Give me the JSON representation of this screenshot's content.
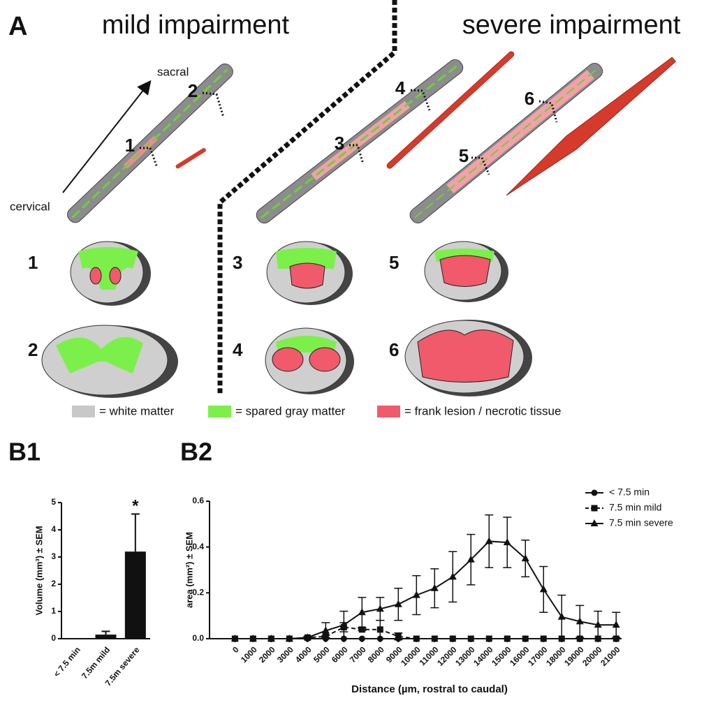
{
  "panel_a": {
    "label": "A",
    "mild_title": "mild impairment",
    "severe_title": "severe impairment",
    "arrow_start": "cervical",
    "arrow_end": "sacral",
    "cord_markers": [
      "1",
      "2",
      "3",
      "4",
      "5",
      "6"
    ],
    "section_labels": [
      "1",
      "2",
      "3",
      "4",
      "5",
      "6"
    ],
    "legend": [
      "= white matter",
      "= spared gray matter",
      "= frank lesion / necrotic tissue"
    ]
  },
  "chart_data": [
    {
      "type": "bar",
      "panel_label": "B1",
      "ylabel": "Volume (mm³) ± SEM",
      "categories": [
        "< 7.5 min",
        "7.5m mild",
        "7.5m severe"
      ],
      "values": [
        0,
        0.15,
        3.2
      ],
      "errors": [
        0,
        0.12,
        1.38
      ],
      "color": "#111111",
      "annotation": "*",
      "ylim": [
        0,
        5
      ],
      "yticks": [
        0,
        1,
        2,
        3,
        4,
        5
      ]
    },
    {
      "type": "line",
      "panel_label": "B2",
      "xlabel": "Distance (µm, rostral to caudal)",
      "ylabel": "area (mm²) ± SEM",
      "x": [
        0,
        1000,
        2000,
        3000,
        4000,
        5000,
        6000,
        7000,
        8000,
        9000,
        10000,
        11000,
        12000,
        13000,
        14000,
        15000,
        16000,
        17000,
        18000,
        19000,
        20000,
        21000
      ],
      "series": [
        {
          "name": "< 7.5 min",
          "color": "#111111",
          "marker": "circle",
          "line_style": "solid",
          "values": [
            0,
            0,
            0,
            0,
            0,
            0,
            0,
            0,
            0,
            0,
            0,
            0,
            0,
            0,
            0,
            0,
            0,
            0,
            0,
            0,
            0,
            0
          ],
          "errors": [
            0,
            0,
            0,
            0,
            0,
            0,
            0,
            0,
            0,
            0,
            0,
            0,
            0,
            0,
            0,
            0,
            0,
            0,
            0,
            0,
            0,
            0
          ]
        },
        {
          "name": "7.5 min mild",
          "color": "#111111",
          "marker": "square",
          "line_style": "dashed",
          "values": [
            0,
            0,
            0,
            0,
            0.005,
            0.01,
            0.05,
            0.04,
            0.04,
            0.01,
            0,
            0,
            0,
            0,
            0,
            0,
            0,
            0,
            0,
            0,
            0,
            0
          ],
          "errors": [
            0,
            0,
            0,
            0,
            0,
            0.005,
            0.02,
            0.005,
            0.04,
            0.015,
            0,
            0,
            0,
            0,
            0,
            0,
            0,
            0,
            0,
            0,
            0,
            0
          ]
        },
        {
          "name": "7.5 min severe",
          "color": "#111111",
          "marker": "triangle",
          "line_style": "solid",
          "values": [
            0,
            0,
            0,
            0,
            0.005,
            0.035,
            0.06,
            0.115,
            0.13,
            0.15,
            0.19,
            0.22,
            0.27,
            0.345,
            0.425,
            0.42,
            0.35,
            0.215,
            0.095,
            0.075,
            0.06,
            0.06
          ],
          "errors": [
            0,
            0,
            0,
            0,
            0.005,
            0.035,
            0.06,
            0.065,
            0.05,
            0.07,
            0.085,
            0.085,
            0.11,
            0.11,
            0.115,
            0.11,
            0.08,
            0.1,
            0.095,
            0.07,
            0.06,
            0.055
          ]
        }
      ],
      "legend": "upper right",
      "xlim": [
        -1400,
        21300
      ],
      "xticks": [
        0,
        1000,
        2000,
        3000,
        4000,
        5000,
        6000,
        7000,
        8000,
        9000,
        10000,
        11000,
        12000,
        13000,
        14000,
        15000,
        16000,
        17000,
        18000,
        19000,
        20000,
        21000
      ],
      "ylim": [
        0,
        0.6
      ],
      "yticks": [
        {
          "value": 0,
          "label": "0.0"
        },
        0.2,
        0.4,
        0.6
      ]
    }
  ]
}
